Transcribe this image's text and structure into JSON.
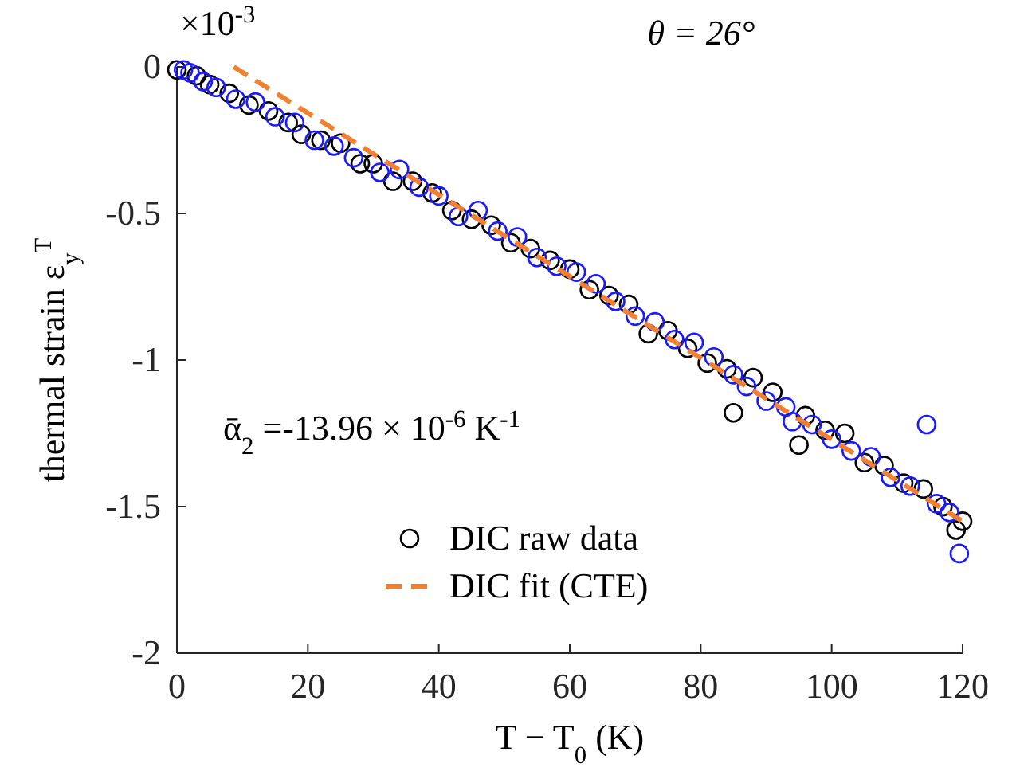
{
  "chart_data": {
    "type": "scatter",
    "title": "θ = 26°",
    "xlabel": "T − T$_{0}$ (K)",
    "ylabel": "thermal strain ε$_{y}$$^{T}$",
    "annotations": [
      "×10$^{-3}$",
      "ᾱ$_{2}$ =-13.96 × 10$^{-6}$ K$^{-1}$"
    ],
    "xlim": [
      0,
      120
    ],
    "xticks": [
      0,
      20,
      40,
      60,
      80,
      100,
      120
    ],
    "ylim": [
      -2,
      0
    ],
    "yticks": [
      -2,
      -1.5,
      -1,
      -0.5,
      0
    ],
    "grid": false,
    "legend": "bottom",
    "series": [
      {
        "name": "DIC raw data",
        "marker": "circle",
        "color": "#000000",
        "x": [
          0,
          3,
          5,
          8,
          11,
          14,
          17,
          19,
          22,
          25,
          28,
          30,
          33,
          36,
          39,
          42,
          45,
          48,
          51,
          54,
          57,
          60,
          63,
          66,
          69,
          72,
          75,
          78,
          81,
          84,
          85,
          88,
          91,
          95,
          96,
          99,
          102,
          105,
          108,
          111,
          114,
          117,
          119,
          120
        ],
        "values": [
          -0.01,
          -0.03,
          -0.06,
          -0.09,
          -0.13,
          -0.15,
          -0.19,
          -0.23,
          -0.25,
          -0.26,
          -0.33,
          -0.33,
          -0.39,
          -0.39,
          -0.43,
          -0.49,
          -0.52,
          -0.54,
          -0.6,
          -0.62,
          -0.66,
          -0.69,
          -0.76,
          -0.78,
          -0.81,
          -0.91,
          -0.9,
          -0.96,
          -1.01,
          -1.03,
          -1.18,
          -1.06,
          -1.11,
          -1.29,
          -1.19,
          -1.24,
          -1.25,
          -1.35,
          -1.36,
          -1.42,
          -1.44,
          -1.5,
          -1.58,
          -1.55
        ]
      },
      {
        "marker": "circle",
        "color": "#1a1aff",
        "x": [
          1,
          2,
          4,
          6,
          9,
          12,
          15,
          18,
          21,
          24,
          27,
          31,
          34,
          37,
          40,
          43,
          46,
          49,
          52,
          55,
          58,
          61,
          64,
          67,
          70,
          73,
          76,
          79,
          82,
          85,
          87,
          90,
          93,
          94,
          97,
          100,
          103,
          106,
          109,
          112,
          114.5,
          116,
          118,
          119.5
        ],
        "values": [
          -0.01,
          -0.02,
          -0.05,
          -0.07,
          -0.11,
          -0.12,
          -0.17,
          -0.19,
          -0.25,
          -0.27,
          -0.31,
          -0.36,
          -0.35,
          -0.41,
          -0.44,
          -0.51,
          -0.49,
          -0.56,
          -0.58,
          -0.65,
          -0.68,
          -0.7,
          -0.74,
          -0.8,
          -0.85,
          -0.87,
          -0.93,
          -0.94,
          -0.99,
          -1.05,
          -1.09,
          -1.14,
          -1.16,
          -1.21,
          -1.22,
          -1.27,
          -1.31,
          -1.33,
          -1.4,
          -1.43,
          -1.22,
          -1.49,
          -1.52,
          -1.66
        ]
      },
      {
        "name": "DIC fit (CTE)",
        "type": "line",
        "marker": "none",
        "line_style": "dashed",
        "color": "#f28033",
        "x": [
          8.7,
          120
        ],
        "values": [
          0,
          -1.55
        ]
      }
    ]
  }
}
